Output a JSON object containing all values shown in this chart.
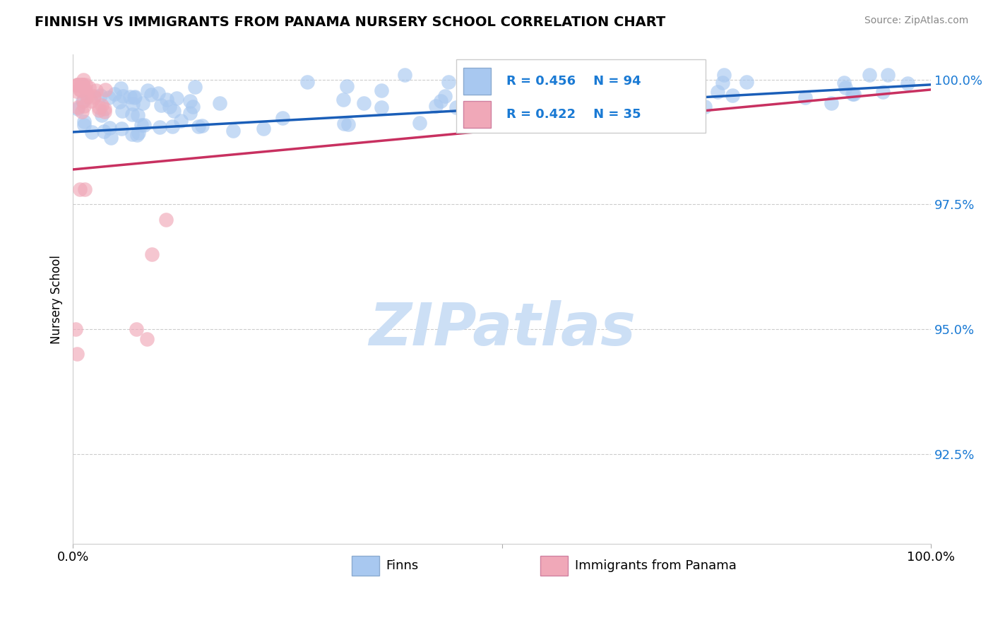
{
  "title": "FINNISH VS IMMIGRANTS FROM PANAMA NURSERY SCHOOL CORRELATION CHART",
  "source_text": "Source: ZipAtlas.com",
  "ylabel": "Nursery School",
  "xlim": [
    0.0,
    1.0
  ],
  "ylim": [
    0.907,
    1.005
  ],
  "yticks": [
    0.925,
    0.95,
    0.975,
    1.0
  ],
  "ytick_labels": [
    "92.5%",
    "95.0%",
    "97.5%",
    "100.0%"
  ],
  "finn_R": 0.456,
  "finn_N": 94,
  "panama_R": 0.422,
  "panama_N": 35,
  "finn_color": "#a8c8f0",
  "finn_line_color": "#1a5eb8",
  "panama_color": "#f0a8b8",
  "panama_line_color": "#c83060",
  "watermark_color": "#ccdff5",
  "legend_color": "#1a7ad4",
  "finn_line_intercept": 0.9895,
  "finn_line_slope": 0.0095,
  "panama_line_intercept": 0.982,
  "panama_line_slope": 0.016
}
